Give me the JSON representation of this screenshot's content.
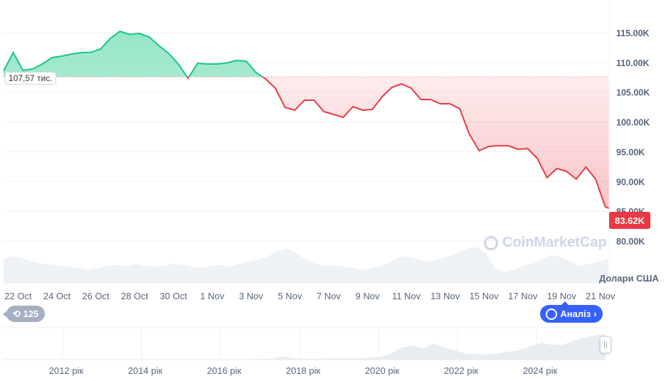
{
  "chart_data": {
    "type": "area",
    "ylabel": "Долари США",
    "y_ticks": [
      "115.00K",
      "110.00K",
      "105.00K",
      "100.00K",
      "95.00K",
      "90.00K",
      "85.00K",
      "80.00K"
    ],
    "y_tick_values": [
      115,
      110,
      105,
      100,
      95,
      90,
      85,
      80
    ],
    "ylim": [
      77.5,
      119
    ],
    "x_ticks": [
      "22 Oct",
      "24 Oct",
      "26 Oct",
      "28 Oct",
      "30 Oct",
      "1 Nov",
      "3 Nov",
      "5 Nov",
      "7 Nov",
      "9 Nov",
      "11 Nov",
      "13 Nov",
      "15 Nov",
      "17 Nov",
      "19 Nov",
      "21 Nov"
    ],
    "baseline": {
      "value": 107.57,
      "label": "107,57 тис."
    },
    "current_price": {
      "value": 83.62,
      "label": "83.62K"
    },
    "colors": {
      "up": "#16c784",
      "down": "#ea3943",
      "volume": "#eff2f5",
      "analysis": "#3861fb"
    },
    "series": [
      {
        "unit": "K USD",
        "x_start": "21 Oct 06:00",
        "step_hours": 12,
        "values": [
          108.55,
          111.65,
          108.67,
          108.91,
          109.74,
          110.82,
          111.06,
          111.42,
          111.65,
          111.7,
          112.25,
          114.04,
          115.24,
          114.7,
          114.88,
          114.28,
          112.85,
          111.54,
          109.74,
          107.35,
          109.86,
          109.74,
          109.74,
          109.92,
          110.34,
          110.22,
          108.31,
          107.23,
          105.68,
          102.45,
          101.98,
          103.65,
          103.65,
          101.74,
          101.26,
          100.78,
          102.57,
          101.98,
          102.1,
          104.25,
          105.8,
          106.4,
          105.68,
          103.77,
          103.77,
          103.05,
          103.05,
          102.22,
          97.92,
          95.17,
          95.89,
          96.0,
          96.0,
          95.41,
          95.53,
          93.85,
          90.63,
          92.18,
          91.7,
          90.39,
          92.42,
          90.39,
          85.73,
          85.49
        ]
      }
    ],
    "volume_relative": [
      0.55,
      0.62,
      0.58,
      0.5,
      0.45,
      0.42,
      0.4,
      0.38,
      0.35,
      0.3,
      0.35,
      0.4,
      0.42,
      0.4,
      0.45,
      0.4,
      0.38,
      0.4,
      0.45,
      0.42,
      0.38,
      0.35,
      0.4,
      0.42,
      0.38,
      0.45,
      0.5,
      0.55,
      0.62,
      0.75,
      0.8,
      0.7,
      0.55,
      0.45,
      0.4,
      0.42,
      0.38,
      0.35,
      0.3,
      0.35,
      0.4,
      0.5,
      0.62,
      0.6,
      0.55,
      0.5,
      0.55,
      0.62,
      0.7,
      0.8,
      0.85,
      0.7,
      0.35,
      0.25,
      0.3,
      0.4,
      0.45,
      0.55,
      0.65,
      0.6,
      0.5,
      0.4,
      0.45,
      0.5,
      0.55
    ],
    "navigator": {
      "x_ticks": [
        "2012 рік",
        "2014 рік",
        "2016 рік",
        "2018 рік",
        "2020 рік",
        "2022 рік",
        "2024 рік"
      ],
      "relative": [
        0,
        0,
        0,
        0,
        0,
        0,
        0,
        0,
        0,
        0,
        0,
        0,
        0,
        0,
        0,
        0,
        0,
        0,
        0.01,
        0.01,
        0.01,
        0.02,
        0.02,
        0.02,
        0.03,
        0.04,
        0.12,
        0.05,
        0.04,
        0.03,
        0.04,
        0.05,
        0.06,
        0.05,
        0.08,
        0.1,
        0.22,
        0.45,
        0.52,
        0.42,
        0.6,
        0.45,
        0.35,
        0.22,
        0.2,
        0.2,
        0.23,
        0.3,
        0.35,
        0.5,
        0.62,
        0.55,
        0.55,
        0.7,
        0.8,
        0.9,
        0.95
      ]
    }
  },
  "watermark": "CoinMarketCap",
  "history_badge": {
    "icon": "history-icon",
    "count": "125"
  },
  "analysis_button": {
    "label": "Аналіз",
    "icon": "cmc-logo-icon",
    "chevron": "›"
  }
}
